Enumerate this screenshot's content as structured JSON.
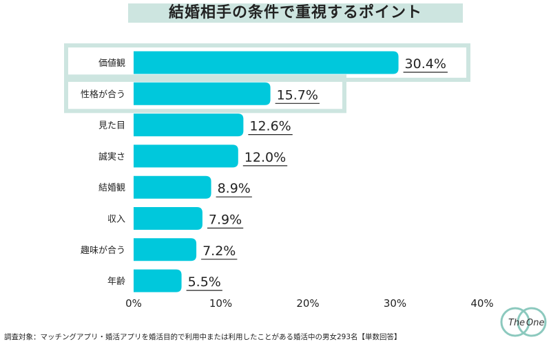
{
  "title": "結婚相手の条件で重視するポイント",
  "footnote": "調査対象：マッチングアプリ・婚活アプリを婚活目的で利用中または利用したことがある婚活中の男女293名【単数回答】",
  "logo": {
    "left": "The",
    "right": "One"
  },
  "colors": {
    "bar": "#00c8dc",
    "highlight": "#cde5e0",
    "text": "#222222",
    "logo": "#8cc9be"
  },
  "chart_data": {
    "type": "bar",
    "orientation": "horizontal",
    "categories": [
      "価値観",
      "性格が合う",
      "見た目",
      "誠実さ",
      "結婚観",
      "収入",
      "趣味が合う",
      "年齢"
    ],
    "values": [
      30.4,
      15.7,
      12.6,
      12.0,
      8.9,
      7.9,
      7.2,
      5.5
    ],
    "value_labels": [
      "30.4%",
      "15.7%",
      "12.6%",
      "12.0%",
      "8.9%",
      "7.9%",
      "7.2%",
      "5.5%"
    ],
    "highlighted": [
      "価値観",
      "性格が合う"
    ],
    "xlim": [
      0,
      40
    ],
    "xticks": [
      0,
      10,
      20,
      30,
      40
    ],
    "xtick_labels": [
      "0%",
      "10%",
      "20%",
      "30%",
      "40%"
    ],
    "title": "結婚相手の条件で重視するポイント",
    "xlabel": "",
    "ylabel": "",
    "grid": false
  }
}
